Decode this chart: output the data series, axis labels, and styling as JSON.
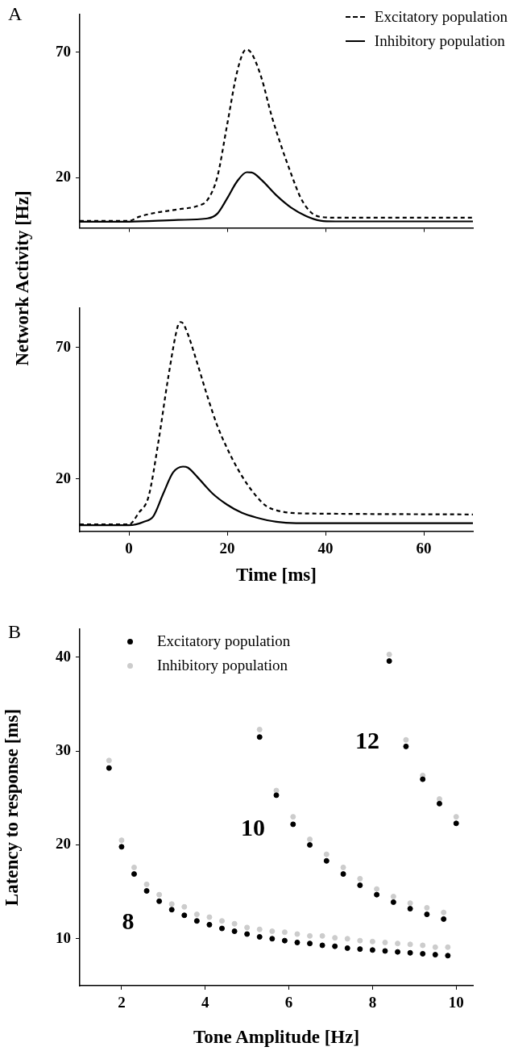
{
  "chart_data": [
    {
      "type": "line",
      "title": "A",
      "ylabel": "Network Activity [Hz]",
      "xlim": [
        -10,
        70
      ],
      "xticks": [
        0,
        20,
        40,
        60
      ],
      "ylim": [
        0,
        85
      ],
      "yticks": [
        20,
        70
      ],
      "tick_labels": "y",
      "grid": false,
      "legend": "top right",
      "marker": "none",
      "series": [
        {
          "name": "Excitatory population",
          "color": "#000000",
          "line_style": "dashed",
          "x": [
            -10,
            0,
            2,
            5,
            10,
            14,
            16,
            18,
            20,
            22,
            23.5,
            24,
            25,
            27,
            29,
            31,
            33,
            35,
            37,
            39,
            42,
            70
          ],
          "values": [
            2.8,
            2.8,
            4.4,
            5.9,
            7.4,
            8.8,
            11.2,
            20.4,
            41.2,
            62.0,
            70.6,
            71.0,
            69.4,
            59.6,
            44.9,
            32.6,
            21.6,
            11.8,
            6.3,
            4.4,
            4.1,
            4.1
          ]
        },
        {
          "name": "Inhibitory population",
          "color": "#000000",
          "line_style": "solid",
          "x": [
            -10,
            0,
            10,
            16,
            18,
            20,
            22,
            24,
            25,
            27,
            30,
            33,
            36,
            39,
            42,
            70
          ],
          "values": [
            2.5,
            2.5,
            3.2,
            3.8,
            5.7,
            11.8,
            18.5,
            22.2,
            22.1,
            19.1,
            13.0,
            8.1,
            4.8,
            2.9,
            2.6,
            2.6
          ]
        }
      ]
    },
    {
      "type": "line",
      "xlabel": "Time [ms]",
      "xlim": [
        -10,
        70
      ],
      "xticks": [
        0,
        20,
        40,
        60
      ],
      "ylim": [
        0,
        85
      ],
      "yticks": [
        20,
        70
      ],
      "grid": false,
      "marker": "none",
      "series": [
        {
          "color": "#000000",
          "line_style": "dashed",
          "x": [
            -10,
            0,
            2,
            4,
            6,
            8,
            10,
            10.5,
            11,
            12,
            14,
            16,
            18,
            20,
            22,
            24,
            26,
            28,
            30,
            33,
            40,
            70
          ],
          "values": [
            2.7,
            2.7,
            7.1,
            13.3,
            34.1,
            58.6,
            78.5,
            79.7,
            79.2,
            75.1,
            63.5,
            51.3,
            40.2,
            31.6,
            24.3,
            18.2,
            13.3,
            9.6,
            8.1,
            7.1,
            6.8,
            6.5
          ]
        },
        {
          "color": "#000000",
          "line_style": "solid",
          "x": [
            -10,
            0,
            3,
            5,
            7,
            9,
            11,
            12,
            14,
            17,
            20,
            23,
            26,
            30,
            34,
            70
          ],
          "values": [
            2.4,
            2.4,
            3.7,
            5.9,
            14.5,
            22.5,
            24.7,
            24.3,
            20.6,
            14.5,
            10.2,
            7.1,
            5.3,
            3.7,
            3.2,
            3.2
          ]
        }
      ]
    },
    {
      "type": "scatter",
      "title": "B",
      "xlabel": "Tone Amplitude [Hz]",
      "ylabel": "Latency to response [ms]",
      "xlim": [
        1,
        10.4
      ],
      "xticks": [
        2,
        4,
        6,
        8,
        10
      ],
      "ylim": [
        5,
        43
      ],
      "yticks": [
        10,
        20,
        30,
        40
      ],
      "grid": false,
      "legend": "top left",
      "marker": "circle",
      "annotations": [
        "8",
        "10",
        "12"
      ],
      "series": [
        {
          "name": "Excitatory population",
          "color": "#000000",
          "x": [
            1.7,
            2.0,
            2.3,
            2.6,
            2.9,
            3.2,
            3.5,
            3.8,
            4.1,
            4.4,
            4.7,
            5.0,
            5.3,
            5.6,
            5.9,
            6.2,
            6.5,
            6.8,
            7.1,
            7.4,
            7.7,
            8.0,
            8.3,
            8.6,
            8.9,
            9.2,
            9.5,
            9.8,
            5.3,
            5.7,
            6.1,
            6.5,
            6.9,
            7.3,
            7.7,
            8.1,
            8.5,
            8.9,
            9.3,
            9.7,
            8.4,
            8.8,
            9.2,
            9.6,
            10.0
          ],
          "values": [
            28.2,
            19.8,
            16.9,
            15.1,
            14.0,
            13.1,
            12.5,
            11.9,
            11.5,
            11.1,
            10.8,
            10.5,
            10.2,
            10.0,
            9.8,
            9.6,
            9.5,
            9.3,
            9.2,
            9.0,
            8.9,
            8.8,
            8.7,
            8.6,
            8.5,
            8.4,
            8.3,
            8.2,
            31.5,
            25.3,
            22.2,
            20.0,
            18.3,
            16.9,
            15.7,
            14.7,
            13.9,
            13.2,
            12.6,
            12.1,
            39.6,
            30.5,
            27.0,
            24.4,
            22.3
          ]
        },
        {
          "name": "Inhibitory population",
          "color": "#cccccc",
          "x": [
            1.7,
            2.0,
            2.3,
            2.6,
            2.9,
            3.2,
            3.5,
            3.8,
            4.1,
            4.4,
            4.7,
            5.0,
            5.3,
            5.6,
            5.9,
            6.2,
            6.5,
            6.8,
            7.1,
            7.4,
            7.7,
            8.0,
            8.3,
            8.6,
            8.9,
            9.2,
            9.5,
            9.8,
            5.3,
            5.7,
            6.1,
            6.5,
            6.9,
            7.3,
            7.7,
            8.1,
            8.5,
            8.9,
            9.3,
            9.7,
            8.4,
            8.8,
            9.2,
            9.6,
            10.0
          ],
          "values": [
            29.0,
            20.5,
            17.6,
            15.8,
            14.7,
            13.7,
            13.4,
            12.6,
            12.3,
            11.9,
            11.6,
            11.2,
            11.0,
            10.8,
            10.7,
            10.5,
            10.3,
            10.3,
            10.1,
            10.0,
            9.8,
            9.7,
            9.6,
            9.5,
            9.4,
            9.3,
            9.1,
            9.1,
            32.3,
            25.8,
            23.0,
            20.6,
            19.0,
            17.6,
            16.4,
            15.3,
            14.5,
            13.8,
            13.3,
            12.8,
            40.3,
            31.2,
            27.4,
            24.9,
            23.0
          ]
        }
      ]
    }
  ]
}
